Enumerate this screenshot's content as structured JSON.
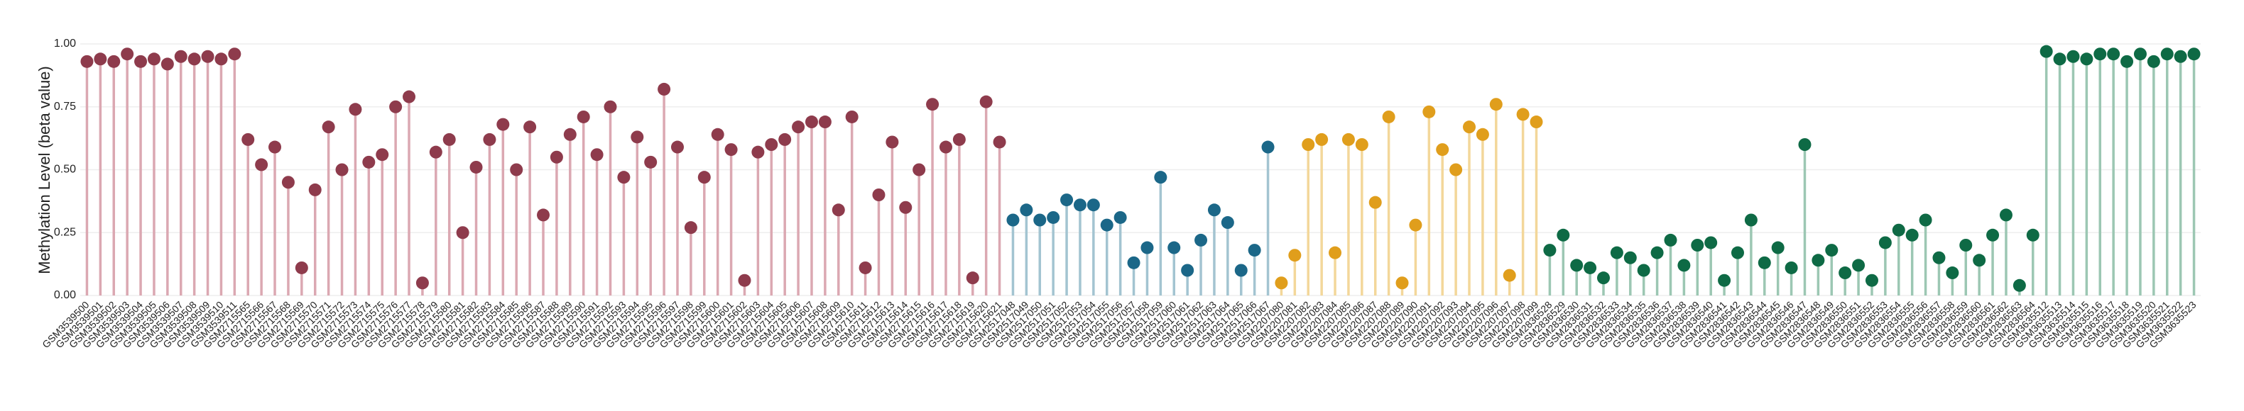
{
  "chart_data": {
    "type": "lollipop",
    "y_label": "Methylation Level (beta value)",
    "ylim": [
      0,
      1
    ],
    "yticks": [
      {
        "value": 0,
        "label": "0.00"
      },
      {
        "value": 0.25,
        "label": "0.25"
      },
      {
        "value": 0.5,
        "label": "0.50"
      },
      {
        "value": 0.75,
        "label": "0.75"
      },
      {
        "value": 1,
        "label": "1.00"
      }
    ],
    "grid": true,
    "series": [
      {
        "color": "#8e3b4c",
        "stem_color": "#dba8b2",
        "categories": [
          "GSM3539500",
          "GSM3539501",
          "GSM3539502",
          "GSM3539503",
          "GSM3539504",
          "GSM3539505",
          "GSM3539506",
          "GSM3539507",
          "GSM3539508",
          "GSM3539509",
          "GSM3539510",
          "GSM3539511"
        ],
        "values": [
          0.93,
          0.94,
          0.93,
          0.96,
          0.93,
          0.94,
          0.92,
          0.95,
          0.94,
          0.95,
          0.94,
          0.96
        ]
      },
      {
        "color": "#8e3b4c",
        "stem_color": "#dba8b2",
        "categories": [
          "GSM2715565",
          "GSM2715566",
          "GSM2715567",
          "GSM2715568",
          "GSM2715569",
          "GSM2715570",
          "GSM2715571",
          "GSM2715572",
          "GSM2715573",
          "GSM2715574",
          "GSM2715575",
          "GSM2715576",
          "GSM2715577",
          "GSM2715578",
          "GSM2715579",
          "GSM2715580",
          "GSM2715581",
          "GSM2715582",
          "GSM2715583",
          "GSM2715584",
          "GSM2715585",
          "GSM2715586",
          "GSM2715587",
          "GSM2715588",
          "GSM2715589",
          "GSM2715590",
          "GSM2715591",
          "GSM2715592",
          "GSM2715593",
          "GSM2715594",
          "GSM2715595",
          "GSM2715596",
          "GSM2715597",
          "GSM2715598",
          "GSM2715599",
          "GSM2715600",
          "GSM2715601",
          "GSM2715602",
          "GSM2715603",
          "GSM2715604",
          "GSM2715605",
          "GSM2715606",
          "GSM2715607",
          "GSM2715608",
          "GSM2715609",
          "GSM2715610",
          "GSM2715611",
          "GSM2715612",
          "GSM2715613",
          "GSM2715614",
          "GSM2715615",
          "GSM2715616",
          "GSM2715617",
          "GSM2715618",
          "GSM2715619",
          "GSM2715620",
          "GSM2715621"
        ],
        "values": [
          0.62,
          0.52,
          0.59,
          0.45,
          0.11,
          0.42,
          0.67,
          0.5,
          0.74,
          0.53,
          0.56,
          0.75,
          0.79,
          0.05,
          0.57,
          0.62,
          0.25,
          0.51,
          0.62,
          0.68,
          0.5,
          0.67,
          0.32,
          0.55,
          0.64,
          0.71,
          0.56,
          0.75,
          0.47,
          0.63,
          0.53,
          0.82,
          0.59,
          0.27,
          0.47,
          0.64,
          0.58,
          0.06,
          0.57,
          0.6,
          0.62,
          0.67,
          0.69,
          0.69,
          0.34,
          0.71,
          0.11,
          0.4,
          0.61,
          0.35,
          0.5,
          0.76,
          0.59,
          0.62,
          0.07,
          0.77,
          0.61
        ]
      },
      {
        "color": "#1b6788",
        "stem_color": "#a3c4d1",
        "categories": [
          "GSM2517048",
          "GSM2517049",
          "GSM2517050",
          "GSM2517051",
          "GSM2517052",
          "GSM2517053",
          "GSM2517054",
          "GSM2517055",
          "GSM2517056",
          "GSM2517057",
          "GSM2517058",
          "GSM2517059",
          "GSM2517060",
          "GSM2517061",
          "GSM2517062",
          "GSM2517063",
          "GSM2517064",
          "GSM2517065",
          "GSM2517066",
          "GSM2517067"
        ],
        "values": [
          0.3,
          0.34,
          0.3,
          0.31,
          0.38,
          0.36,
          0.36,
          0.28,
          0.31,
          0.13,
          0.19,
          0.47,
          0.19,
          0.1,
          0.22,
          0.34,
          0.29,
          0.1,
          0.18,
          0.59
        ]
      },
      {
        "color": "#e09e1c",
        "stem_color": "#f3d79a",
        "categories": [
          "GSM2207080",
          "GSM2207081",
          "GSM2207082",
          "GSM2207083",
          "GSM2207084",
          "GSM2207085",
          "GSM2207086",
          "GSM2207087",
          "GSM2207088",
          "GSM2207089",
          "GSM2207090",
          "GSM2207091",
          "GSM2207092",
          "GSM2207093",
          "GSM2207094",
          "GSM2207095",
          "GSM2207096",
          "GSM2207097",
          "GSM2207098",
          "GSM2207099"
        ],
        "values": [
          0.05,
          0.16,
          0.6,
          0.62,
          0.17,
          0.62,
          0.6,
          0.37,
          0.71,
          0.05,
          0.28,
          0.73,
          0.58,
          0.5,
          0.67,
          0.64,
          0.76,
          0.08,
          0.72,
          0.69
        ]
      },
      {
        "color": "#0e6a45",
        "stem_color": "#9cc7b3",
        "categories": [
          "GSM2836528",
          "GSM2836529",
          "GSM2836530",
          "GSM2836531",
          "GSM2836532",
          "GSM2836533",
          "GSM2836534",
          "GSM2836535",
          "GSM2836536",
          "GSM2836537",
          "GSM2836538",
          "GSM2836539",
          "GSM2836540",
          "GSM2836541",
          "GSM2836542",
          "GSM2836543",
          "GSM2836544",
          "GSM2836545",
          "GSM2836546",
          "GSM2836547",
          "GSM2836548",
          "GSM2836549",
          "GSM2836550",
          "GSM2836551",
          "GSM2836552",
          "GSM2836553",
          "GSM2836554",
          "GSM2836555",
          "GSM2836556",
          "GSM2836557",
          "GSM2836558",
          "GSM2836559",
          "GSM2836560",
          "GSM2836561",
          "GSM2836562",
          "GSM2836563",
          "GSM2836564"
        ],
        "values": [
          0.18,
          0.24,
          0.12,
          0.11,
          0.07,
          0.17,
          0.15,
          0.1,
          0.17,
          0.22,
          0.12,
          0.2,
          0.21,
          0.06,
          0.17,
          0.3,
          0.13,
          0.19,
          0.11,
          0.6,
          0.14,
          0.18,
          0.09,
          0.12,
          0.06,
          0.21,
          0.26,
          0.24,
          0.3,
          0.15,
          0.09,
          0.2,
          0.14,
          0.24,
          0.32,
          0.04,
          0.24
        ]
      },
      {
        "color": "#0e6a45",
        "stem_color": "#9cc7b3",
        "categories": [
          "GSM3635512",
          "GSM3635513",
          "GSM3635514",
          "GSM3635515",
          "GSM3635516",
          "GSM3635517",
          "GSM3635518",
          "GSM3635519",
          "GSM3635520",
          "GSM3635521",
          "GSM3635522",
          "GSM3635523"
        ],
        "values": [
          0.97,
          0.94,
          0.95,
          0.94,
          0.96,
          0.96,
          0.93,
          0.96,
          0.93,
          0.96,
          0.95,
          0.96
        ]
      }
    ]
  }
}
